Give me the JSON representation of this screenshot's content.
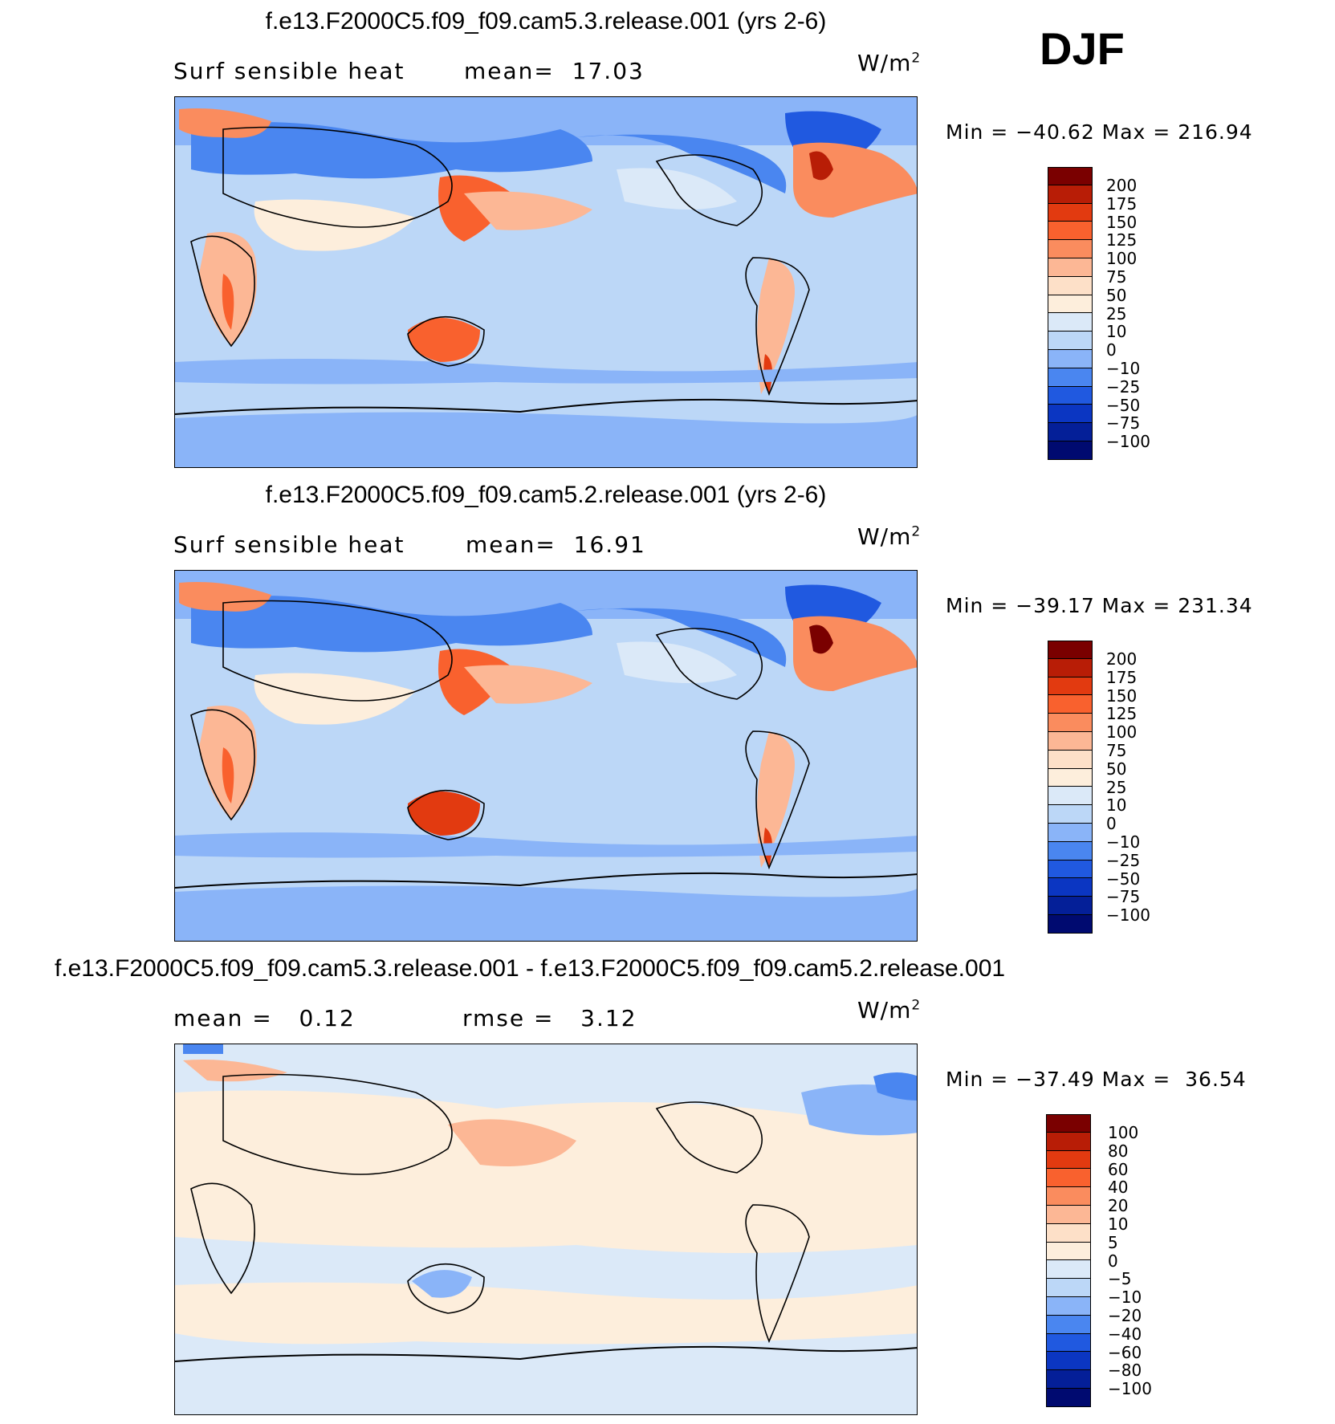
{
  "season": "DJF",
  "units_base": "W/m",
  "units_sup": "2",
  "panels": [
    {
      "title": "f.e13.F2000C5.f09_f09.cam5.3.release.001 (yrs 2-6)",
      "left_text": "Surf sensible heat",
      "right_text": "mean=  17.03",
      "minmax": "Min = −40.62 Max = 216.94",
      "colorbar_labels": [
        "200",
        "175",
        "150",
        "125",
        "100",
        "75",
        "50",
        "25",
        "10",
        "0",
        "−10",
        "−25",
        "−50",
        "−75",
        "−100"
      ],
      "colors": [
        "#7a0000",
        "#b81d06",
        "#e23a10",
        "#f9612e",
        "#fa8c5e",
        "#fcb795",
        "#fde0c8",
        "#fdeedc",
        "#dbe9f8",
        "#bcd7f7",
        "#8ab4f8",
        "#4a86f0",
        "#2059e0",
        "#0b36c2",
        "#041f98",
        "#000a70"
      ]
    },
    {
      "title": "f.e13.F2000C5.f09_f09.cam5.2.release.001 (yrs 2-6)",
      "left_text": "Surf sensible heat",
      "right_text": "mean=  16.91",
      "minmax": "Min = −39.17 Max = 231.34",
      "colorbar_labels": [
        "200",
        "175",
        "150",
        "125",
        "100",
        "75",
        "50",
        "25",
        "10",
        "0",
        "−10",
        "−25",
        "−50",
        "−75",
        "−100"
      ],
      "colors": [
        "#7a0000",
        "#b81d06",
        "#e23a10",
        "#f9612e",
        "#fa8c5e",
        "#fcb795",
        "#fde0c8",
        "#fdeedc",
        "#dbe9f8",
        "#bcd7f7",
        "#8ab4f8",
        "#4a86f0",
        "#2059e0",
        "#0b36c2",
        "#041f98",
        "#000a70"
      ]
    },
    {
      "title": "f.e13.F2000C5.f09_f09.cam5.3.release.001 - f.e13.F2000C5.f09_f09.cam5.2.release.001",
      "left_text": "mean =   0.12",
      "right_text": "rmse =   3.12",
      "minmax": "Min = −37.49 Max =  36.54",
      "colorbar_labels": [
        "100",
        "80",
        "60",
        "40",
        "20",
        "10",
        "5",
        "0",
        "−5",
        "−10",
        "−20",
        "−40",
        "−60",
        "−80",
        "−100"
      ],
      "colors": [
        "#7a0000",
        "#b81d06",
        "#e23a10",
        "#f9612e",
        "#fa8c5e",
        "#fcb795",
        "#fde0c8",
        "#fdeedc",
        "#dbe9f8",
        "#bcd7f7",
        "#8ab4f8",
        "#4a86f0",
        "#2059e0",
        "#0b36c2",
        "#041f98",
        "#000a70"
      ]
    }
  ]
}
